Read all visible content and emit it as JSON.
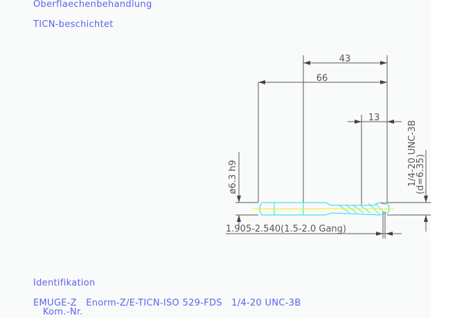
{
  "labels": {
    "surface_heading": "Oberflaechenbehandlung",
    "surface_value": "TICN-beschichtet",
    "ident_heading": "Identifikation",
    "ident_value": "EMUGE-Z   Enorm-Z/E-TICN-ISO 529-FDS   1/4-20 UNC-3B",
    "kom_nr": "Kom.-Nr."
  },
  "drawing": {
    "dim_thread_length": "43",
    "dim_total_length": "66",
    "dim_13": "13",
    "dim_shank": "ø6.3 h9",
    "dim_thread": "1/4-20 UNC-3B",
    "dim_thread_d": "(d=6.35)",
    "dim_chamfer": "1.905-2.540(1.5-2.0 Gang)"
  },
  "colors": {
    "text": "#5a62f0",
    "tool_outline": "#22d8e8",
    "centerline": "#f0f000",
    "dimension": "#555555",
    "thread_end": "#e83030"
  }
}
